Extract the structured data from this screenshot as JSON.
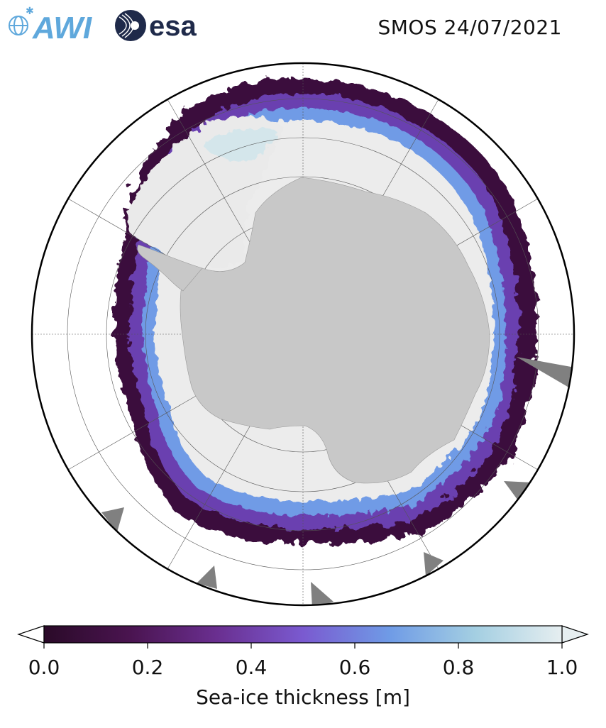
{
  "header": {
    "title": "SMOS 24/07/2021",
    "logos": [
      {
        "name": "awi-logo",
        "text": "AWI"
      },
      {
        "name": "esa-logo",
        "text": "esa"
      }
    ]
  },
  "map": {
    "projection": "south-polar-stereographic",
    "colors": {
      "land": "#c8c8c8",
      "ice_shelf": "#ebebeb",
      "ocean": "#ffffff",
      "no_data": "#808080",
      "grid": "#555555"
    }
  },
  "colorbar": {
    "label": "Sea-ice thickness [m]",
    "ticks": [
      "0.0",
      "0.2",
      "0.4",
      "0.6",
      "0.8",
      "1.0"
    ],
    "min": 0.0,
    "max": 1.0,
    "colors": [
      "#2a0a28",
      "#4a1450",
      "#6a2f90",
      "#7a5ad0",
      "#6f9be6",
      "#a4cfe2",
      "#e6eef0"
    ],
    "extend": "both"
  }
}
